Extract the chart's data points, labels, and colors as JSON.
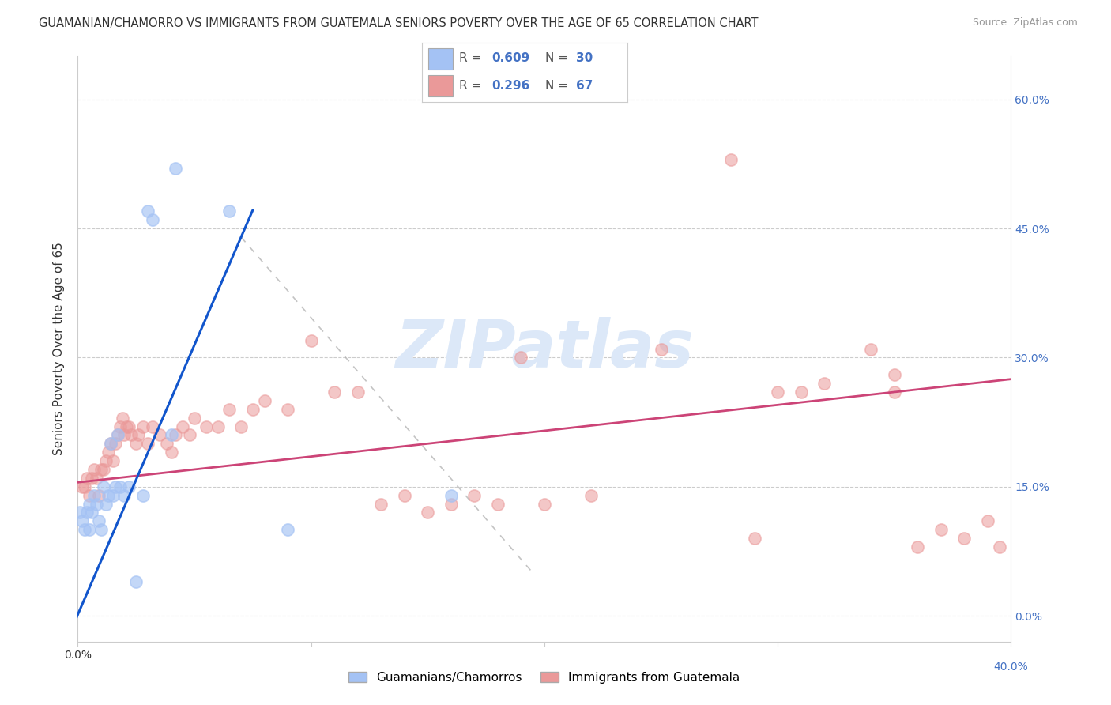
{
  "title": "GUAMANIAN/CHAMORRO VS IMMIGRANTS FROM GUATEMALA SENIORS POVERTY OVER THE AGE OF 65 CORRELATION CHART",
  "source": "Source: ZipAtlas.com",
  "ylabel": "Seniors Poverty Over the Age of 65",
  "xlim": [
    0.0,
    0.4
  ],
  "ylim": [
    -0.03,
    0.65
  ],
  "yticks": [
    0.0,
    0.15,
    0.3,
    0.45,
    0.6
  ],
  "ytick_labels": [
    "0.0%",
    "15.0%",
    "30.0%",
    "45.0%",
    "60.0%"
  ],
  "xtick_left_label": "0.0%",
  "xtick_right_label": "40.0%",
  "blue_color": "#a4c2f4",
  "blue_line_color": "#1155cc",
  "pink_color": "#ea9999",
  "pink_line_color": "#cc4477",
  "blue_scatter_x": [
    0.001,
    0.002,
    0.003,
    0.004,
    0.005,
    0.005,
    0.006,
    0.007,
    0.008,
    0.009,
    0.01,
    0.011,
    0.012,
    0.013,
    0.014,
    0.015,
    0.016,
    0.017,
    0.018,
    0.02,
    0.022,
    0.025,
    0.028,
    0.03,
    0.032,
    0.04,
    0.042,
    0.065,
    0.09,
    0.16
  ],
  "blue_scatter_y": [
    0.12,
    0.11,
    0.1,
    0.12,
    0.13,
    0.1,
    0.12,
    0.14,
    0.13,
    0.11,
    0.1,
    0.15,
    0.13,
    0.14,
    0.2,
    0.14,
    0.15,
    0.21,
    0.15,
    0.14,
    0.15,
    0.04,
    0.14,
    0.47,
    0.46,
    0.21,
    0.52,
    0.47,
    0.1,
    0.14
  ],
  "pink_scatter_x": [
    0.002,
    0.003,
    0.004,
    0.005,
    0.006,
    0.007,
    0.008,
    0.009,
    0.01,
    0.011,
    0.012,
    0.013,
    0.014,
    0.015,
    0.016,
    0.017,
    0.018,
    0.019,
    0.02,
    0.021,
    0.022,
    0.023,
    0.025,
    0.026,
    0.028,
    0.03,
    0.032,
    0.035,
    0.038,
    0.04,
    0.042,
    0.045,
    0.048,
    0.05,
    0.055,
    0.06,
    0.065,
    0.07,
    0.075,
    0.08,
    0.09,
    0.1,
    0.11,
    0.12,
    0.13,
    0.14,
    0.15,
    0.16,
    0.17,
    0.18,
    0.19,
    0.2,
    0.22,
    0.25,
    0.28,
    0.3,
    0.32,
    0.34,
    0.35,
    0.36,
    0.37,
    0.38,
    0.39,
    0.395,
    0.35,
    0.31,
    0.29
  ],
  "pink_scatter_y": [
    0.15,
    0.15,
    0.16,
    0.14,
    0.16,
    0.17,
    0.16,
    0.14,
    0.17,
    0.17,
    0.18,
    0.19,
    0.2,
    0.18,
    0.2,
    0.21,
    0.22,
    0.23,
    0.21,
    0.22,
    0.22,
    0.21,
    0.2,
    0.21,
    0.22,
    0.2,
    0.22,
    0.21,
    0.2,
    0.19,
    0.21,
    0.22,
    0.21,
    0.23,
    0.22,
    0.22,
    0.24,
    0.22,
    0.24,
    0.25,
    0.24,
    0.32,
    0.26,
    0.26,
    0.13,
    0.14,
    0.12,
    0.13,
    0.14,
    0.13,
    0.3,
    0.13,
    0.14,
    0.31,
    0.53,
    0.26,
    0.27,
    0.31,
    0.26,
    0.08,
    0.1,
    0.09,
    0.11,
    0.08,
    0.28,
    0.26,
    0.09
  ],
  "blue_line_x0": -0.005,
  "blue_line_x1": 0.075,
  "pink_line_x0": 0.0,
  "pink_line_x1": 0.4,
  "pink_line_y0": 0.155,
  "pink_line_y1": 0.275,
  "dash_line_x0": 0.07,
  "dash_line_y0": 0.44,
  "dash_line_x1": 0.195,
  "dash_line_y1": 0.05,
  "background_color": "#ffffff",
  "grid_color": "#cccccc",
  "title_fontsize": 10.5,
  "axis_label_fontsize": 11,
  "tick_fontsize": 10,
  "watermark_text": "ZIPatlas",
  "watermark_color": "#dce8f8"
}
